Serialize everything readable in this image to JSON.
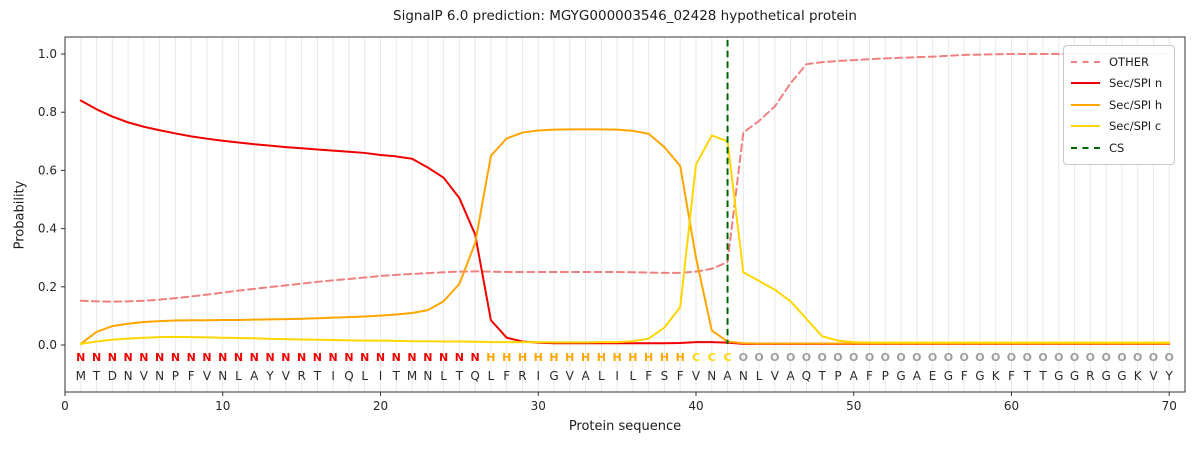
{
  "chart_data": {
    "type": "line",
    "title": "SignalP 6.0 prediction: MGYG000003546_02428 hypothetical protein",
    "xlabel": "Protein sequence",
    "ylabel": "Probability",
    "xlim": [
      0,
      71
    ],
    "ylim": [
      -0.16,
      1.06
    ],
    "xticks": [
      0,
      10,
      20,
      30,
      40,
      50,
      60,
      70
    ],
    "yticks": [
      "0.0",
      "0.2",
      "0.4",
      "0.6",
      "0.8",
      "1.0"
    ],
    "grid": "vertical line per residue",
    "grid_color": "#e8e8e8",
    "axis_color": "#333333",
    "legend_position": "upper-right",
    "cs_position": 42,
    "sequence": "MTDNVNPFVNLAYVRTIQLITMNLTQLFRIGVALILFSFVNANLVAQTPAFPGAEGFGKFTTGGRGGKVY",
    "region_labels": "NNNNNNNNNNNNNNNNNNNNNNNNNNHHHHHHHHHHHHHCCCOOOOOOOOOOOOOOOOOOOOOOOOOOOO",
    "region_colors": {
      "N": "#f20000",
      "H": "#ffa500",
      "C": "#ffd700",
      "O": "#9e9e9e"
    },
    "sequence_color": "#2b2b2b",
    "x": "residue positions 1-70",
    "series": [
      {
        "key": "other",
        "name": "OTHER",
        "color": "#f08080",
        "style": "dashed",
        "dash": "7 4.2",
        "values": [
          0.152,
          0.15,
          0.149,
          0.15,
          0.152,
          0.156,
          0.161,
          0.167,
          0.173,
          0.18,
          0.187,
          0.193,
          0.199,
          0.205,
          0.211,
          0.217,
          0.222,
          0.227,
          0.232,
          0.237,
          0.241,
          0.244,
          0.247,
          0.25,
          0.252,
          0.253,
          0.252,
          0.251,
          0.251,
          0.251,
          0.251,
          0.251,
          0.251,
          0.251,
          0.251,
          0.25,
          0.249,
          0.248,
          0.248,
          0.252,
          0.262,
          0.285,
          0.73,
          0.77,
          0.82,
          0.9,
          0.965,
          0.972,
          0.976,
          0.979,
          0.982,
          0.985,
          0.987,
          0.989,
          0.991,
          0.994,
          0.997,
          0.998,
          0.999,
          1.0,
          1.0,
          1.0,
          1.0,
          1.0,
          1.0,
          1.0,
          1.0,
          1.0,
          1.0,
          1.0
        ]
      },
      {
        "key": "n",
        "name": "Sec/SPI n",
        "color": "#f20000",
        "style": "solid",
        "dash": "",
        "values": [
          0.84,
          0.81,
          0.785,
          0.765,
          0.75,
          0.738,
          0.727,
          0.717,
          0.709,
          0.702,
          0.696,
          0.69,
          0.685,
          0.68,
          0.676,
          0.672,
          0.668,
          0.664,
          0.66,
          0.653,
          0.648,
          0.64,
          0.61,
          0.575,
          0.505,
          0.38,
          0.085,
          0.025,
          0.012,
          0.008,
          0.006,
          0.006,
          0.006,
          0.006,
          0.006,
          0.006,
          0.006,
          0.006,
          0.007,
          0.01,
          0.01,
          0.008,
          0.004,
          0.004,
          0.004,
          0.004,
          0.004,
          0.004,
          0.004,
          0.004,
          0.004,
          0.004,
          0.004,
          0.004,
          0.004,
          0.004,
          0.004,
          0.004,
          0.004,
          0.004,
          0.004,
          0.004,
          0.004,
          0.004,
          0.004,
          0.004,
          0.004,
          0.004,
          0.004,
          0.004
        ]
      },
      {
        "key": "h",
        "name": "Sec/SPI h",
        "color": "#ffa500",
        "style": "solid",
        "dash": "",
        "values": [
          0.004,
          0.045,
          0.065,
          0.073,
          0.079,
          0.082,
          0.084,
          0.085,
          0.085,
          0.086,
          0.086,
          0.087,
          0.088,
          0.089,
          0.09,
          0.092,
          0.094,
          0.096,
          0.098,
          0.101,
          0.105,
          0.11,
          0.12,
          0.15,
          0.21,
          0.35,
          0.65,
          0.71,
          0.73,
          0.737,
          0.74,
          0.741,
          0.741,
          0.741,
          0.74,
          0.736,
          0.726,
          0.68,
          0.615,
          0.3,
          0.05,
          0.012,
          0.006,
          0.005,
          0.005,
          0.005,
          0.005,
          0.005,
          0.005,
          0.005,
          0.005,
          0.005,
          0.005,
          0.005,
          0.005,
          0.005,
          0.005,
          0.005,
          0.005,
          0.005,
          0.005,
          0.005,
          0.005,
          0.005,
          0.005,
          0.005,
          0.005,
          0.005,
          0.005,
          0.005
        ]
      },
      {
        "key": "c",
        "name": "Sec/SPI c",
        "color": "#ffd700",
        "style": "solid",
        "dash": "",
        "values": [
          0.004,
          0.012,
          0.018,
          0.022,
          0.025,
          0.027,
          0.028,
          0.027,
          0.026,
          0.025,
          0.024,
          0.023,
          0.021,
          0.02,
          0.019,
          0.018,
          0.017,
          0.016,
          0.015,
          0.015,
          0.014,
          0.013,
          0.013,
          0.012,
          0.012,
          0.011,
          0.01,
          0.01,
          0.01,
          0.01,
          0.009,
          0.009,
          0.009,
          0.01,
          0.01,
          0.013,
          0.022,
          0.06,
          0.13,
          0.62,
          0.72,
          0.7,
          0.25,
          0.22,
          0.19,
          0.15,
          0.09,
          0.03,
          0.015,
          0.01,
          0.008,
          0.008,
          0.008,
          0.008,
          0.008,
          0.008,
          0.008,
          0.008,
          0.008,
          0.008,
          0.008,
          0.008,
          0.008,
          0.008,
          0.008,
          0.008,
          0.008,
          0.008,
          0.008,
          0.008
        ]
      },
      {
        "key": "cs",
        "name": "CS",
        "color": "#006400",
        "style": "dashed-vertical",
        "dash": "6.5 4.2",
        "cs_position": 42
      }
    ],
    "legend": [
      {
        "label": "OTHER",
        "color": "#f08080",
        "dash": true
      },
      {
        "label": "Sec/SPI n",
        "color": "#f20000",
        "dash": false
      },
      {
        "label": "Sec/SPI h",
        "color": "#ffa500",
        "dash": false
      },
      {
        "label": "Sec/SPI c",
        "color": "#ffd700",
        "dash": false
      },
      {
        "label": "CS",
        "color": "#006400",
        "dash": true
      }
    ]
  }
}
